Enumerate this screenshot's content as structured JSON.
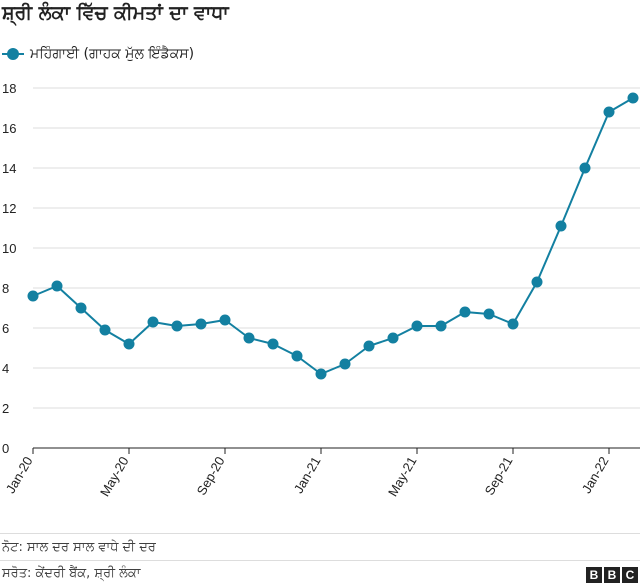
{
  "title": "ਸ਼੍ਰੀ ਲੰਕਾ ਵਿੱਚ ਕੀਮਤਾਂ ਦਾ ਵਾਧਾ",
  "legend": {
    "label": "ਮਹਿੰਗਾਈ (ਗਾਹਕ ਮੁੱਲ ਇੰਡੈਕਸ)"
  },
  "note": "ਨੋਟ: ਸਾਲ ਦਰ ਸਾਲ ਵਾਧੇ ਦੀ ਦਰ",
  "source": "ਸਰੋਤ: ਕੇਂਦਰੀ ਬੈਂਕ, ਸ਼੍ਰੀ ਲੰਕਾ",
  "logo": [
    "B",
    "B",
    "C"
  ],
  "colors": {
    "series": "#1380a1",
    "axis": "#222222",
    "grid": "#dddddd",
    "text": "#222222"
  },
  "chart_data": {
    "type": "line",
    "title": "ਸ਼੍ਰੀ ਲੰਕਾ ਵਿੱਚ ਕੀਮਤਾਂ ਦਾ ਵਾਧਾ",
    "xlabel": "",
    "ylabel": "",
    "ylim": [
      0,
      18
    ],
    "yticks": [
      0,
      2,
      4,
      6,
      8,
      10,
      12,
      14,
      16,
      18
    ],
    "x": [
      "Jan-20",
      "Feb-20",
      "Mar-20",
      "Apr-20",
      "May-20",
      "Jun-20",
      "Jul-20",
      "Aug-20",
      "Sep-20",
      "Oct-20",
      "Nov-20",
      "Dec-20",
      "Jan-21",
      "Feb-21",
      "Mar-21",
      "Apr-21",
      "May-21",
      "Jun-21",
      "Jul-21",
      "Aug-21",
      "Sep-21",
      "Oct-21",
      "Nov-21",
      "Dec-21",
      "Jan-22",
      "Feb-22"
    ],
    "xtick_labels": [
      "Jan-20",
      "May-20",
      "Sep-20",
      "Jan-21",
      "May-21",
      "Sep-21",
      "Jan-22"
    ],
    "series": [
      {
        "name": "ਮਹਿੰਗਾਈ (ਗਾਹਕ ਮੁੱਲ ਇੰਡੈਕਸ)",
        "values": [
          7.6,
          8.1,
          7.0,
          5.9,
          5.2,
          6.3,
          6.1,
          6.2,
          6.4,
          5.5,
          5.2,
          4.6,
          3.7,
          4.2,
          5.1,
          5.5,
          6.1,
          6.1,
          6.8,
          6.7,
          6.2,
          8.3,
          11.1,
          14.0,
          16.8,
          17.5
        ]
      }
    ],
    "grid": true,
    "legend": "top-left"
  }
}
